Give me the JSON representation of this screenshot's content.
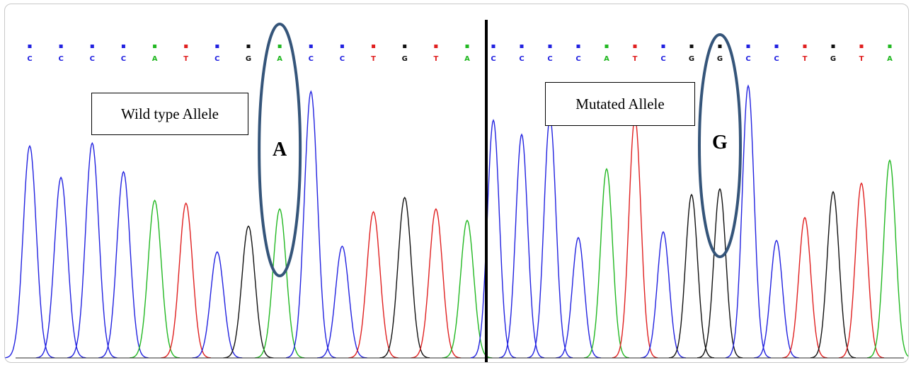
{
  "panels": [
    {
      "label": "Wild type Allele",
      "highlight_letter": "A",
      "bases": [
        "C",
        "C",
        "C",
        "C",
        "A",
        "T",
        "C",
        "G",
        "A",
        "C",
        "C",
        "T",
        "G",
        "T",
        "A"
      ],
      "peak_heights": [
        0.74,
        0.63,
        0.75,
        0.65,
        0.55,
        0.54,
        0.37,
        0.46,
        0.52,
        0.93,
        0.39,
        0.51,
        0.56,
        0.52,
        0.48
      ],
      "highlight_index": 8
    },
    {
      "label": "Mutated Allele",
      "highlight_letter": "G",
      "bases": [
        "C",
        "C",
        "C",
        "C",
        "A",
        "T",
        "C",
        "G",
        "G",
        "C",
        "C",
        "T",
        "G",
        "T",
        "A"
      ],
      "peak_heights": [
        0.83,
        0.78,
        0.84,
        0.42,
        0.66,
        0.84,
        0.44,
        0.57,
        0.59,
        0.95,
        0.41,
        0.49,
        0.58,
        0.61,
        0.69
      ],
      "highlight_index": 8
    }
  ],
  "base_colors": {
    "A": "#22b822",
    "C": "#2222e0",
    "G": "#111111",
    "T": "#e02020"
  }
}
